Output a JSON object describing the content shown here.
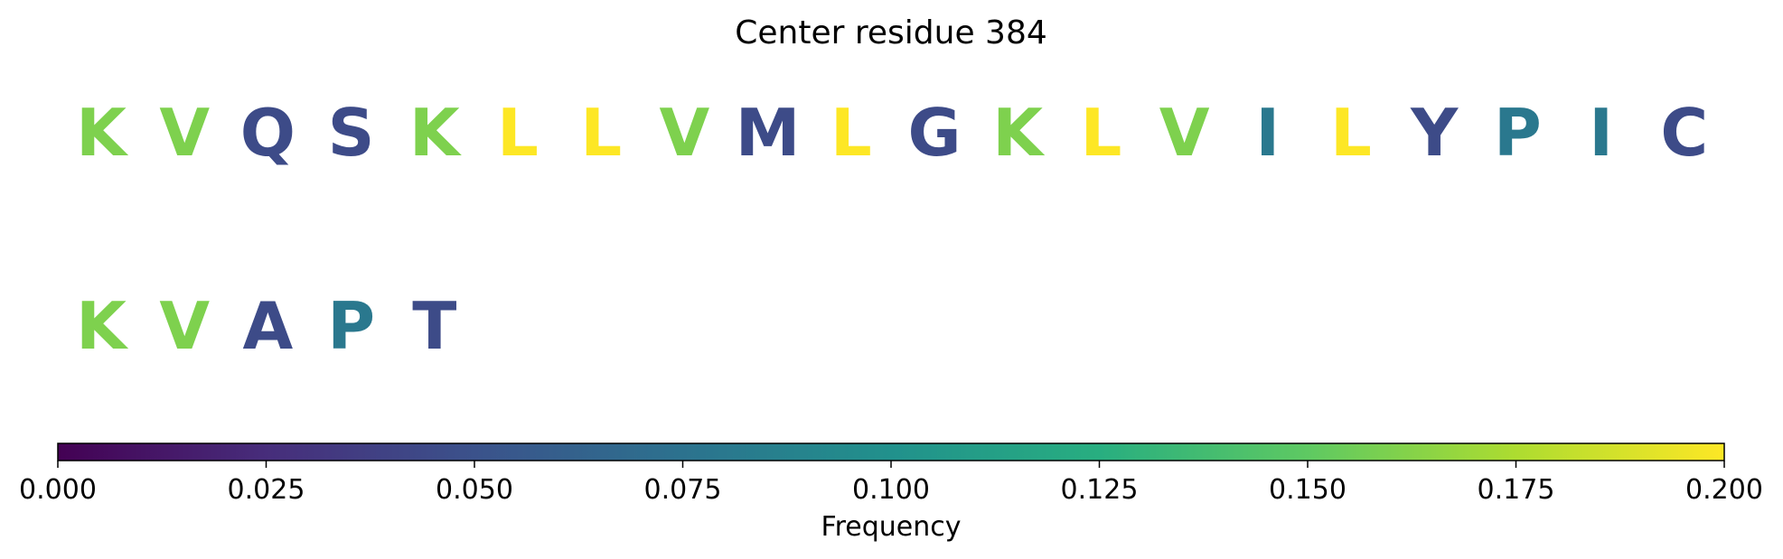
{
  "chart_data": {
    "type": "heatmap",
    "title": "Center residue 384",
    "rows": [
      {
        "residues": [
          {
            "letter": "K",
            "frequency": 0.16
          },
          {
            "letter": "V",
            "frequency": 0.16
          },
          {
            "letter": "Q",
            "frequency": 0.045
          },
          {
            "letter": "S",
            "frequency": 0.045
          },
          {
            "letter": "K",
            "frequency": 0.16
          },
          {
            "letter": "L",
            "frequency": 0.2
          },
          {
            "letter": "L",
            "frequency": 0.2
          },
          {
            "letter": "V",
            "frequency": 0.16
          },
          {
            "letter": "M",
            "frequency": 0.045
          },
          {
            "letter": "L",
            "frequency": 0.2
          },
          {
            "letter": "G",
            "frequency": 0.045
          },
          {
            "letter": "K",
            "frequency": 0.16
          },
          {
            "letter": "L",
            "frequency": 0.2
          },
          {
            "letter": "V",
            "frequency": 0.16
          },
          {
            "letter": "I",
            "frequency": 0.08
          },
          {
            "letter": "L",
            "frequency": 0.2
          },
          {
            "letter": "Y",
            "frequency": 0.045
          },
          {
            "letter": "P",
            "frequency": 0.08
          },
          {
            "letter": "I",
            "frequency": 0.08
          },
          {
            "letter": "C",
            "frequency": 0.045
          }
        ]
      },
      {
        "residues": [
          {
            "letter": "K",
            "frequency": 0.16
          },
          {
            "letter": "V",
            "frequency": 0.16
          },
          {
            "letter": "A",
            "frequency": 0.045
          },
          {
            "letter": "P",
            "frequency": 0.08
          },
          {
            "letter": "T",
            "frequency": 0.045
          }
        ]
      }
    ],
    "colorbar": {
      "colormap": "viridis",
      "range": [
        0.0,
        0.2
      ],
      "ticks": [
        "0.000",
        "0.025",
        "0.050",
        "0.075",
        "0.100",
        "0.125",
        "0.150",
        "0.175",
        "0.200"
      ],
      "label": "Frequency",
      "orientation": "horizontal",
      "placement": "bottom"
    }
  }
}
